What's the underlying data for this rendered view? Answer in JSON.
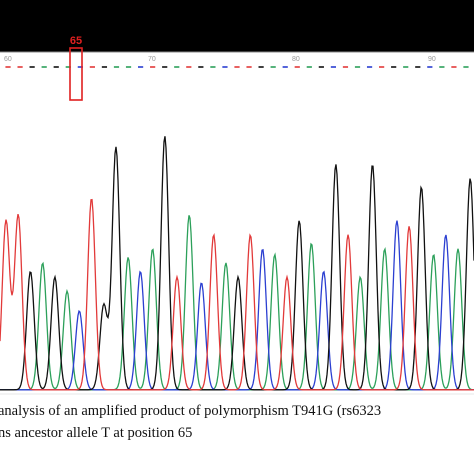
{
  "figure": {
    "highlight_label": "65",
    "highlight_color": "#e02020",
    "position_ticks": [
      "60",
      "70",
      "80",
      "90"
    ],
    "caption_lines": [
      "analysis of an amplified product of polymorphism T941G (rs6323",
      "ns ancestor allele T at position 65"
    ]
  },
  "chart_data": {
    "type": "line",
    "title": "",
    "xlabel": "",
    "ylabel": "",
    "grid": false,
    "channels": {
      "A": "#2ca05a",
      "C": "#2b3fd1",
      "G": "#111111",
      "T": "#e23a3a"
    },
    "base_calls": [
      "T",
      "T",
      "G",
      "A",
      "G",
      "A",
      "C",
      "T",
      "G",
      "A",
      "A",
      "C",
      "T",
      "G",
      "A",
      "T",
      "G",
      "A",
      "C",
      "T",
      "T",
      "G",
      "A",
      "C",
      "T",
      "A",
      "G",
      "C",
      "T",
      "A",
      "C",
      "T",
      "G",
      "A",
      "G",
      "C",
      "A",
      "T",
      "A"
    ],
    "peaks": [
      {
        "base": "T",
        "height": 0.6
      },
      {
        "base": "T",
        "height": 0.62
      },
      {
        "base": "G",
        "height": 0.42
      },
      {
        "base": "A",
        "height": 0.45
      },
      {
        "base": "G",
        "height": 0.4
      },
      {
        "base": "A",
        "height": 0.35
      },
      {
        "base": "C",
        "height": 0.28
      },
      {
        "base": "T",
        "height": 0.68
      },
      {
        "base": "G",
        "height": 0.3
      },
      {
        "base": "G",
        "height": 0.86
      },
      {
        "base": "A",
        "height": 0.47
      },
      {
        "base": "C",
        "height": 0.42
      },
      {
        "base": "A",
        "height": 0.5
      },
      {
        "base": "G",
        "height": 0.9
      },
      {
        "base": "T",
        "height": 0.4
      },
      {
        "base": "A",
        "height": 0.62
      },
      {
        "base": "C",
        "height": 0.38
      },
      {
        "base": "T",
        "height": 0.55
      },
      {
        "base": "A",
        "height": 0.45
      },
      {
        "base": "G",
        "height": 0.4
      },
      {
        "base": "T",
        "height": 0.55
      },
      {
        "base": "C",
        "height": 0.5
      },
      {
        "base": "A",
        "height": 0.48
      },
      {
        "base": "T",
        "height": 0.4
      },
      {
        "base": "G",
        "height": 0.6
      },
      {
        "base": "A",
        "height": 0.52
      },
      {
        "base": "C",
        "height": 0.42
      },
      {
        "base": "G",
        "height": 0.8
      },
      {
        "base": "T",
        "height": 0.55
      },
      {
        "base": "A",
        "height": 0.4
      },
      {
        "base": "G",
        "height": 0.8
      },
      {
        "base": "A",
        "height": 0.5
      },
      {
        "base": "C",
        "height": 0.6
      },
      {
        "base": "T",
        "height": 0.58
      },
      {
        "base": "G",
        "height": 0.72
      },
      {
        "base": "A",
        "height": 0.48
      },
      {
        "base": "C",
        "height": 0.55
      },
      {
        "base": "A",
        "height": 0.5
      },
      {
        "base": "G",
        "height": 0.75
      }
    ]
  }
}
